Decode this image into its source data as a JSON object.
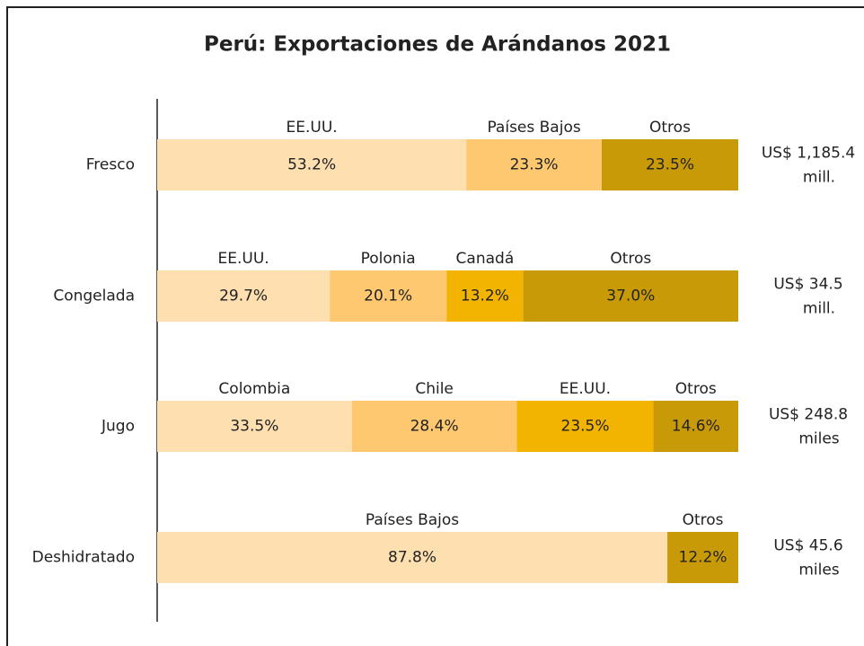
{
  "chart_data": {
    "type": "bar",
    "title": "Perú: Exportaciones de Arándanos 2021",
    "xlim": [
      0,
      100
    ],
    "bars": [
      {
        "category": "Fresco",
        "total": [
          "US$ 1,185.4",
          "mill."
        ],
        "segments": [
          {
            "name": "EE.UU.",
            "value": 53.2,
            "value_label": "53.2%",
            "color": "#fddfb0"
          },
          {
            "name": "Países Bajos",
            "value": 23.3,
            "value_label": "23.3%",
            "color": "#fdc870"
          },
          {
            "name": "Otros",
            "value": 23.5,
            "value_label": "23.5%",
            "color": "#c99a08"
          }
        ]
      },
      {
        "category": "Congelada",
        "total": [
          "US$ 34.5",
          "mill."
        ],
        "segments": [
          {
            "name": "EE.UU.",
            "value": 29.7,
            "value_label": "29.7%",
            "color": "#fddfb0"
          },
          {
            "name": "Polonia",
            "value": 20.1,
            "value_label": "20.1%",
            "color": "#fdc870"
          },
          {
            "name": "Canadá",
            "value": 13.2,
            "value_label": "13.2%",
            "color": "#f2b400"
          },
          {
            "name": "Otros",
            "value": 37.0,
            "value_label": "37.0%",
            "color": "#c99a08"
          }
        ]
      },
      {
        "category": "Jugo",
        "total": [
          "US$ 248.8",
          "miles"
        ],
        "segments": [
          {
            "name": "Colombia",
            "value": 33.5,
            "value_label": "33.5%",
            "color": "#fddfb0"
          },
          {
            "name": "Chile",
            "value": 28.4,
            "value_label": "28.4%",
            "color": "#fdc870"
          },
          {
            "name": "EE.UU.",
            "value": 23.5,
            "value_label": "23.5%",
            "color": "#f2b400"
          },
          {
            "name": "Otros",
            "value": 14.6,
            "value_label": "14.6%",
            "color": "#c99a08"
          }
        ]
      },
      {
        "category": "Deshidratado",
        "total": [
          "US$ 45.6",
          "miles"
        ],
        "segments": [
          {
            "name": "Países Bajos",
            "value": 87.8,
            "value_label": "87.8%",
            "color": "#fddfb0"
          },
          {
            "name": "Otros",
            "value": 12.2,
            "value_label": "12.2%",
            "color": "#c99a08"
          }
        ]
      }
    ]
  }
}
